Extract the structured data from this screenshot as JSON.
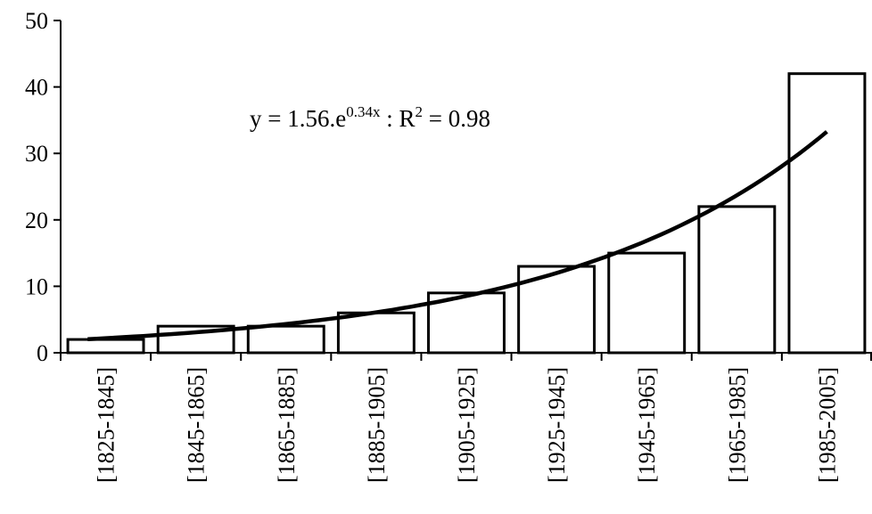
{
  "chart_data": {
    "type": "bar",
    "title": "",
    "xlabel": "",
    "ylabel": "",
    "categories": [
      "[1825-1845]",
      "[1845-1865]",
      "[1865-1885]",
      "[1885-1905]",
      "[1905-1925]",
      "[1925-1945]",
      "[1945-1965]",
      "[1965-1985]",
      "[1985-2005]"
    ],
    "values": [
      2,
      4,
      4,
      6,
      9,
      13,
      15,
      22,
      42
    ],
    "ylim": [
      0,
      50
    ],
    "yticks": [
      0,
      10,
      20,
      30,
      40,
      50
    ],
    "grid": false,
    "bar_fill": "#ffffff",
    "bar_stroke": "#000000",
    "trendline": {
      "type": "exponential",
      "a": 1.56,
      "b": 0.34,
      "color": "#000000",
      "equation": {
        "prefix": "y = 1.56.e",
        "exponent": "0.34x",
        "separator": " : R",
        "r_exponent": "2",
        "suffix": " = 0.98"
      }
    }
  }
}
